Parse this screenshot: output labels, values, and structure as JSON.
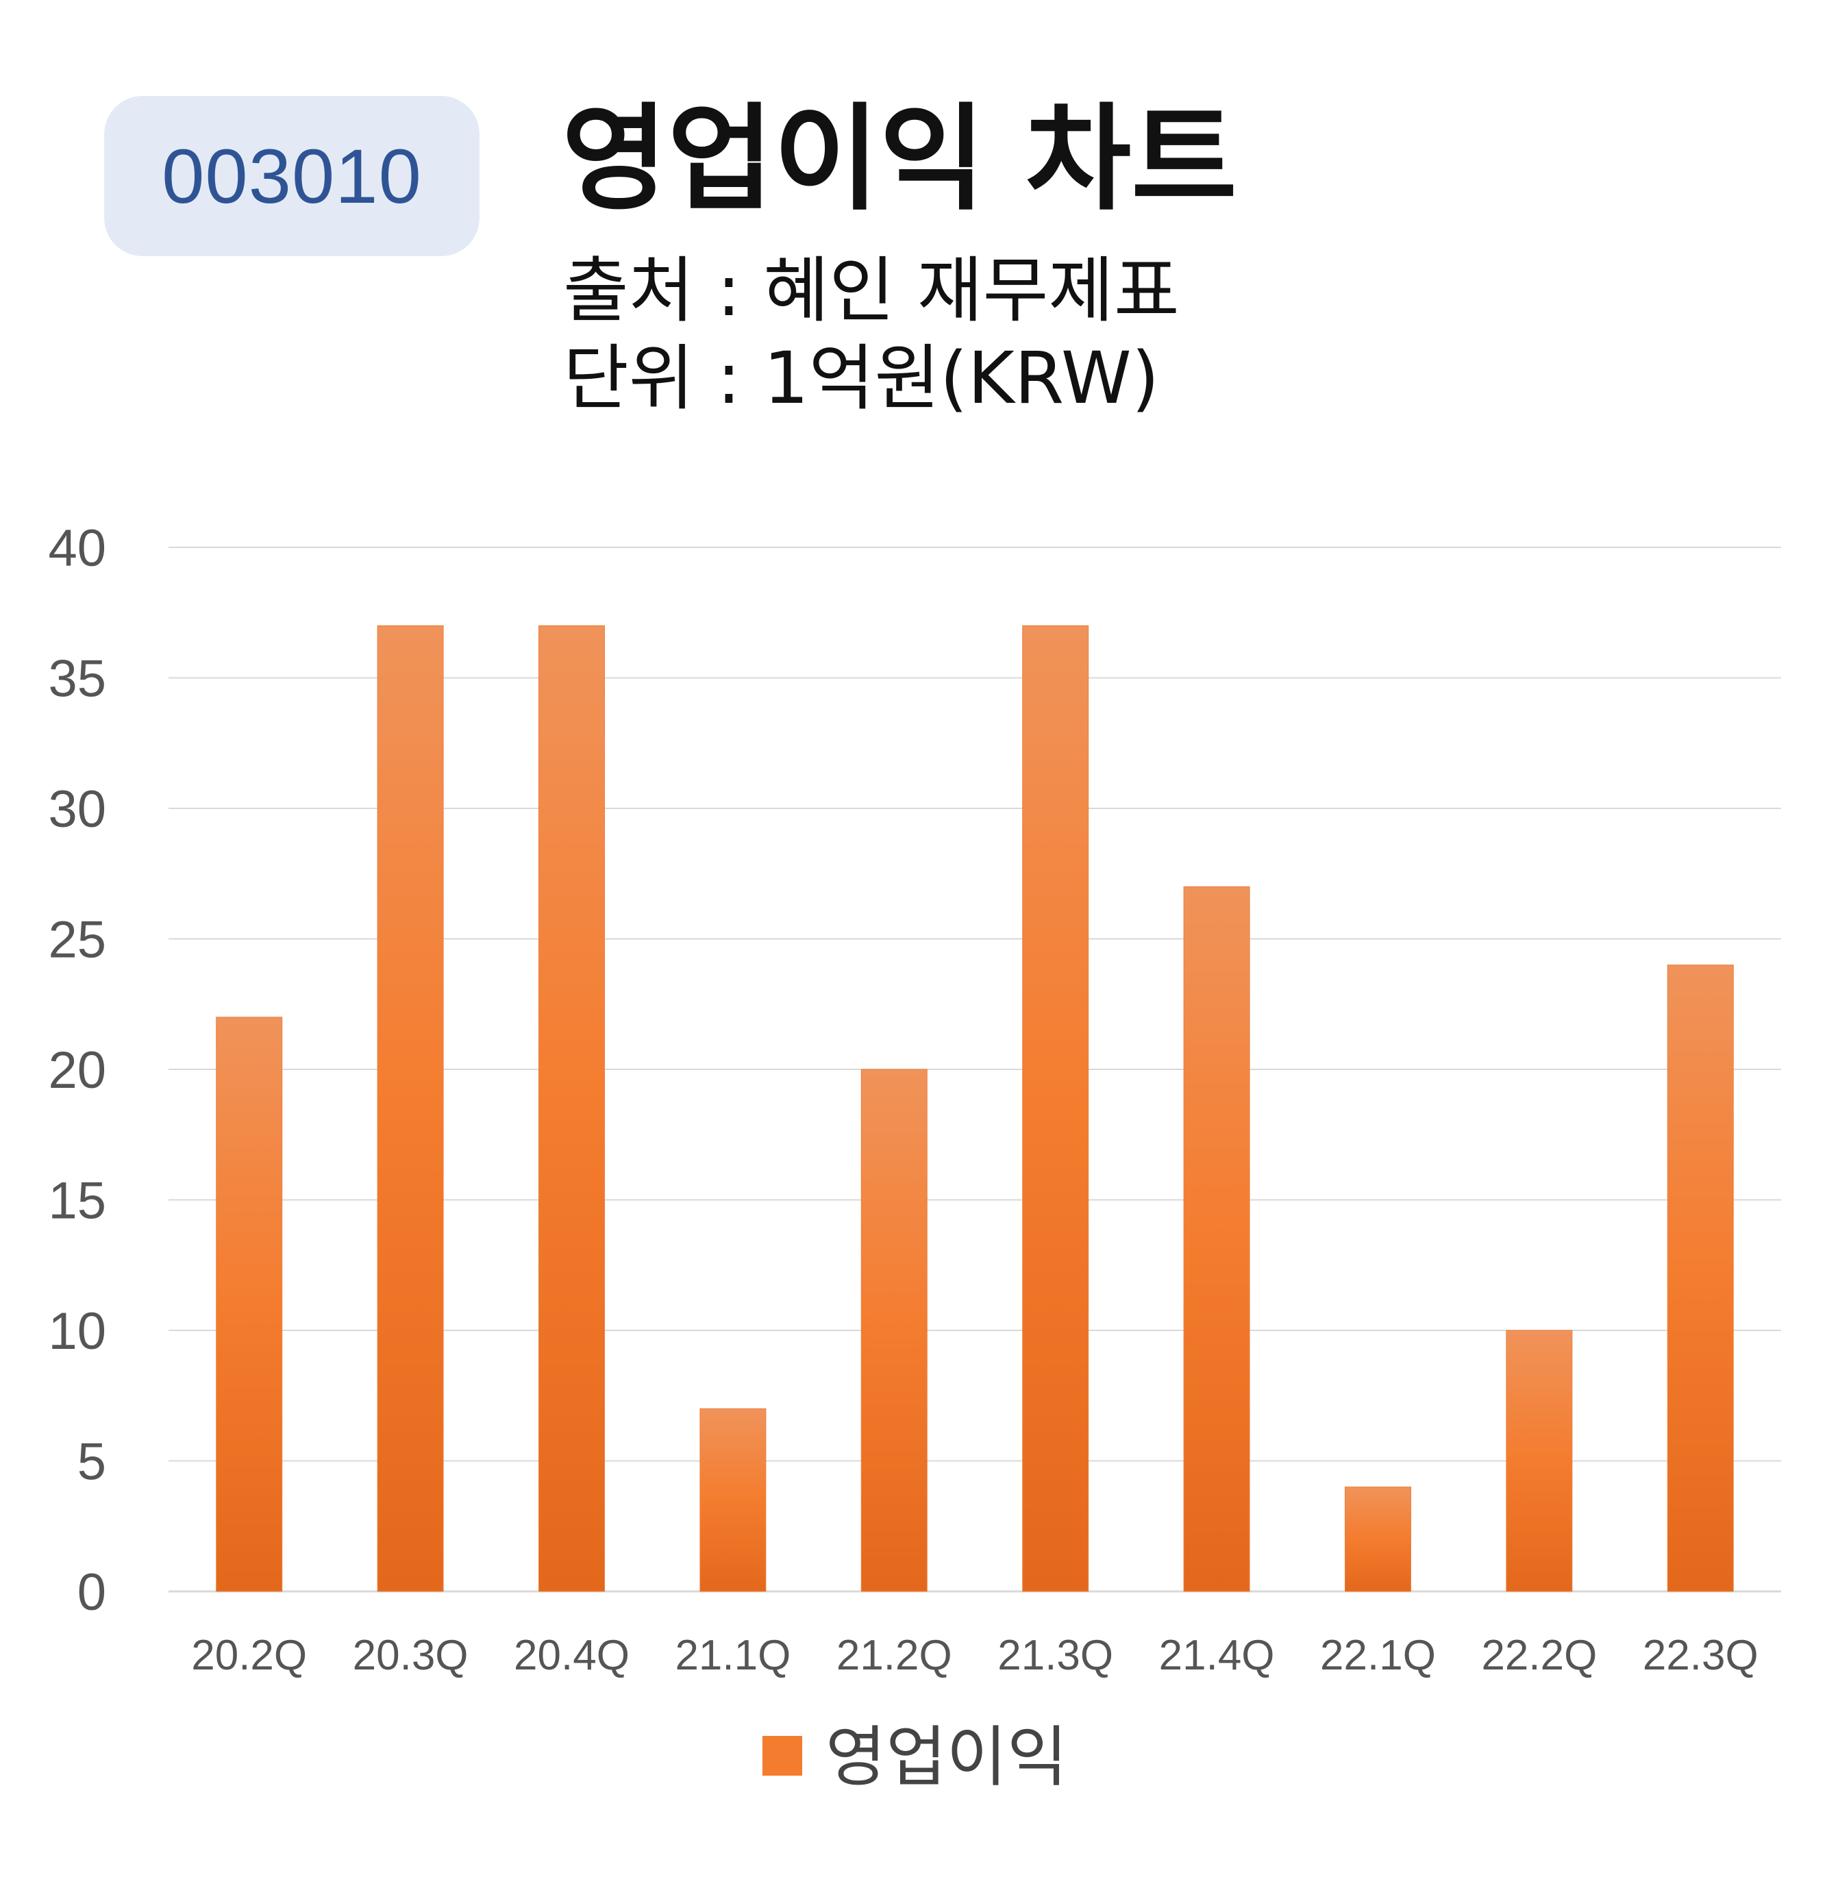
{
  "badge": {
    "code": "003010"
  },
  "header": {
    "title": "영업이익 차트",
    "source": "출처 : 혜인 재무제표",
    "unit": "단위 : 1억원(KRW)"
  },
  "colors": {
    "bar_top": "#f0935a",
    "bar_mid": "#f47c2e",
    "bar_bottom": "#e4681c",
    "badge_bg": "#e4eaf5",
    "badge_text": "#2f5496",
    "grid": "#d9d9d9"
  },
  "chart_data": {
    "type": "bar",
    "categories": [
      "20.2Q",
      "20.3Q",
      "20.4Q",
      "21.1Q",
      "21.2Q",
      "21.3Q",
      "21.4Q",
      "22.1Q",
      "22.2Q",
      "22.3Q"
    ],
    "series": [
      {
        "name": "영업이익",
        "values": [
          22,
          37,
          37,
          7,
          20,
          37,
          27,
          4,
          10,
          24
        ]
      }
    ],
    "ylim": [
      0,
      40
    ],
    "yticks": [
      0,
      5,
      10,
      15,
      20,
      25,
      30,
      35,
      40
    ],
    "grid": true,
    "legend": "bottom"
  }
}
